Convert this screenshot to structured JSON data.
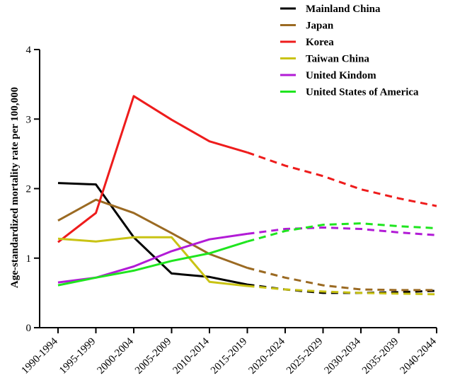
{
  "chart_data": {
    "type": "line",
    "title": "",
    "xlabel": "",
    "ylabel": "Age-standardized mortality  rate per 100,000",
    "ylim": [
      0,
      4
    ],
    "yticks": [
      "0",
      "1",
      "2",
      "3",
      "4"
    ],
    "categories": [
      "1990-1994",
      "1995-1999",
      "2000-2004",
      "2005-2009",
      "2010-2014",
      "2015-2019",
      "2020-2024",
      "2025-2029",
      "2030-2034",
      "2035-2039",
      "2040-2044"
    ],
    "observed_until": "2015-2019",
    "projected_style": "dashed",
    "grid": false,
    "legend_position": "top-right",
    "series": [
      {
        "name": "Mainland China",
        "color": "#000000",
        "values": [
          2.08,
          2.06,
          1.3,
          0.78,
          0.73,
          0.62,
          0.55,
          0.5,
          0.5,
          0.51,
          0.53
        ]
      },
      {
        "name": "Japan",
        "color": "#9b6a22",
        "values": [
          1.54,
          1.84,
          1.65,
          1.36,
          1.06,
          0.86,
          0.72,
          0.61,
          0.55,
          0.54,
          0.54
        ]
      },
      {
        "name": "Korea",
        "color": "#ee1c1c",
        "values": [
          1.23,
          1.65,
          3.33,
          2.99,
          2.68,
          2.52,
          2.33,
          2.18,
          1.99,
          1.86,
          1.75
        ]
      },
      {
        "name": "Taiwan China",
        "color": "#c9c314",
        "values": [
          1.28,
          1.24,
          1.3,
          1.3,
          0.66,
          0.6,
          0.55,
          0.52,
          0.5,
          0.49,
          0.48
        ]
      },
      {
        "name": "United Kindom",
        "color": "#b21bd6",
        "values": [
          0.65,
          0.72,
          0.88,
          1.1,
          1.27,
          1.35,
          1.42,
          1.44,
          1.42,
          1.37,
          1.33
        ]
      },
      {
        "name": "United States of America",
        "color": "#1fe51f",
        "values": [
          0.61,
          0.72,
          0.82,
          0.96,
          1.07,
          1.24,
          1.39,
          1.48,
          1.5,
          1.46,
          1.43
        ]
      }
    ]
  }
}
